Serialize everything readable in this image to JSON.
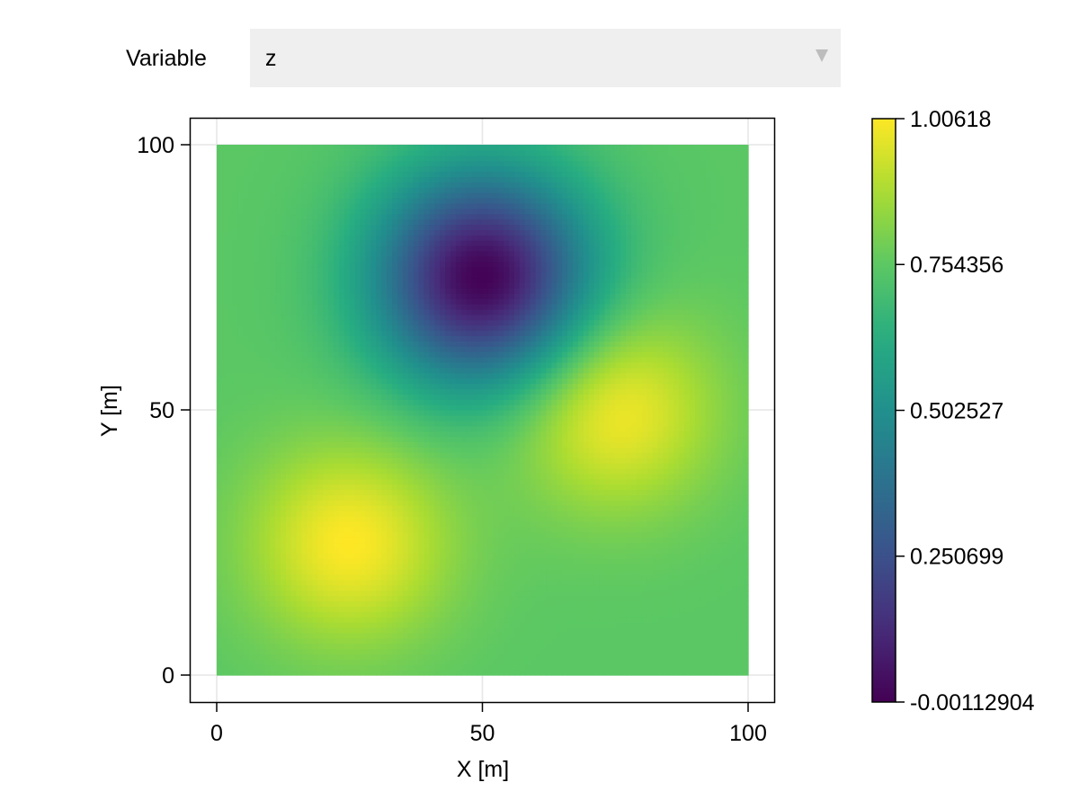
{
  "controls": {
    "variable_label": "Variable",
    "variable_value": "z"
  },
  "chart_data": {
    "type": "heatmap",
    "title": "",
    "xlabel": "X [m]",
    "ylabel": "Y [m]",
    "xlim": [
      0,
      100
    ],
    "ylim": [
      0,
      100
    ],
    "x_ticks": [
      0,
      50,
      100
    ],
    "y_ticks": [
      0,
      50,
      100
    ],
    "grid": true,
    "colormap": "viridis",
    "grid_resolution": 101,
    "value_range": [
      -0.00112904,
      1.00618
    ],
    "colorbar": {
      "ticks": [
        -0.00112904,
        0.250699,
        0.502527,
        0.754356,
        1.00618
      ],
      "tick_labels": [
        "-0.00112904",
        "0.250699",
        "0.502527",
        "0.754356",
        "1.00618"
      ],
      "placement": "right"
    },
    "features": [
      {
        "kind": "peak",
        "x": 25,
        "y": 25,
        "value": 1.00618
      },
      {
        "kind": "peak",
        "x": 75,
        "y": 50,
        "value": 1.0
      },
      {
        "kind": "trough",
        "x": 50,
        "y": 75,
        "value": -0.00112904
      }
    ],
    "background_value": 0.75
  }
}
